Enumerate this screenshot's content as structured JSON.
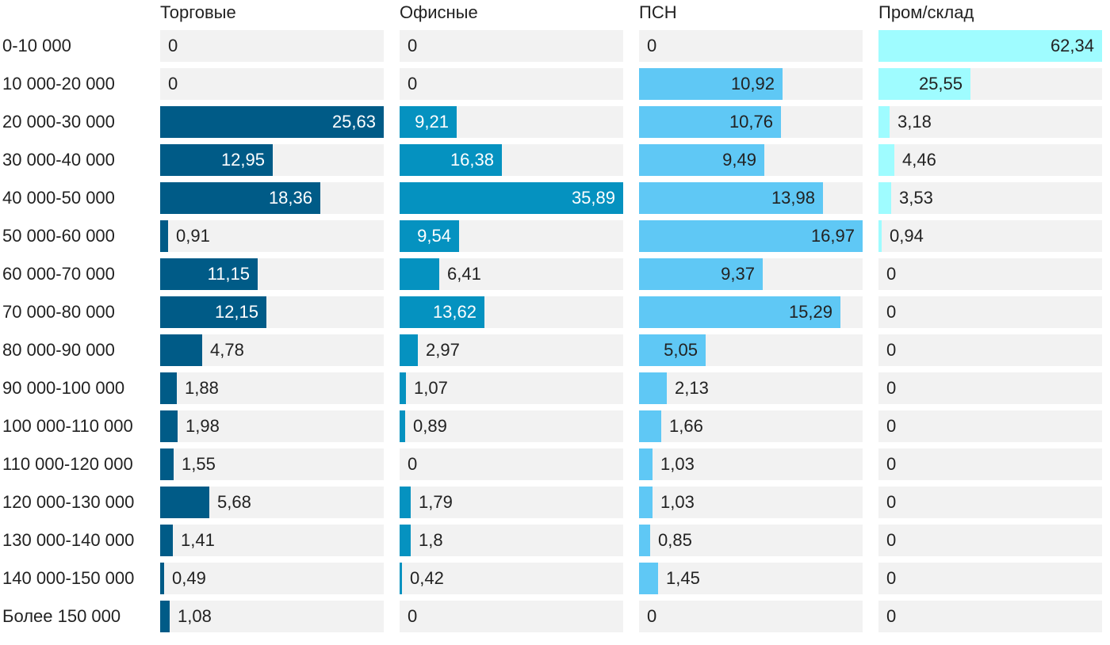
{
  "chart_data": {
    "type": "bar",
    "orientation": "horizontal",
    "layout": "small-multiples",
    "categories": [
      "0-10 000",
      "10 000-20 000",
      "20 000-30 000",
      "30 000-40 000",
      "40 000-50 000",
      "50 000-60 000",
      "60 000-70 000",
      "70 000-80 000",
      "80 000-90 000",
      "90 000-100 000",
      "100 000-110 000",
      "110 000-120 000",
      "120 000-130 000",
      "130 000-140 000",
      "140 000-150 000",
      "Более 150 000"
    ],
    "series": [
      {
        "name": "Торговые",
        "color": "#005b87",
        "max": 25.63,
        "values": [
          0,
          0,
          25.63,
          12.95,
          18.36,
          0.91,
          11.15,
          12.15,
          4.78,
          1.88,
          1.98,
          1.55,
          5.68,
          1.41,
          0.49,
          1.08
        ],
        "labels": [
          "0",
          "0",
          "25,63",
          "12,95",
          "18,36",
          "0,91",
          "11,15",
          "12,15",
          "4,78",
          "1,88",
          "1,98",
          "1,55",
          "5,68",
          "1,41",
          "0,49",
          "1,08"
        ]
      },
      {
        "name": "Офисные",
        "color": "#0592c0",
        "max": 35.89,
        "values": [
          0,
          0,
          9.21,
          16.38,
          35.89,
          9.54,
          6.41,
          13.62,
          2.97,
          1.07,
          0.89,
          0,
          1.79,
          1.8,
          0.42,
          0
        ],
        "labels": [
          "0",
          "0",
          "9,21",
          "16,38",
          "35,89",
          "9,54",
          "6,41",
          "13,62",
          "2,97",
          "1,07",
          "0,89",
          "0",
          "1,79",
          "1,8",
          "0,42",
          "0"
        ]
      },
      {
        "name": "ПСН",
        "color": "#5fc8f5",
        "max": 16.97,
        "values": [
          0,
          10.92,
          10.76,
          9.49,
          13.98,
          16.97,
          9.37,
          15.29,
          5.05,
          2.13,
          1.66,
          1.03,
          1.03,
          0.85,
          1.45,
          0
        ],
        "labels": [
          "0",
          "10,92",
          "10,76",
          "9,49",
          "13,98",
          "16,97",
          "9,37",
          "15,29",
          "5,05",
          "2,13",
          "1,66",
          "1,03",
          "1,03",
          "0,85",
          "1,45",
          "0"
        ]
      },
      {
        "name": "Пром/склад",
        "color": "#9ffcff",
        "max": 62.34,
        "values": [
          62.34,
          25.55,
          3.18,
          4.46,
          3.53,
          0.94,
          0,
          0,
          0,
          0,
          0,
          0,
          0,
          0,
          0,
          0
        ],
        "labels": [
          "62,34",
          "25,55",
          "3,18",
          "4,46",
          "3,53",
          "0,94",
          "0",
          "0",
          "0",
          "0",
          "0",
          "0",
          "0",
          "0",
          "0",
          "0"
        ]
      }
    ],
    "grid": false,
    "legend": "none"
  }
}
